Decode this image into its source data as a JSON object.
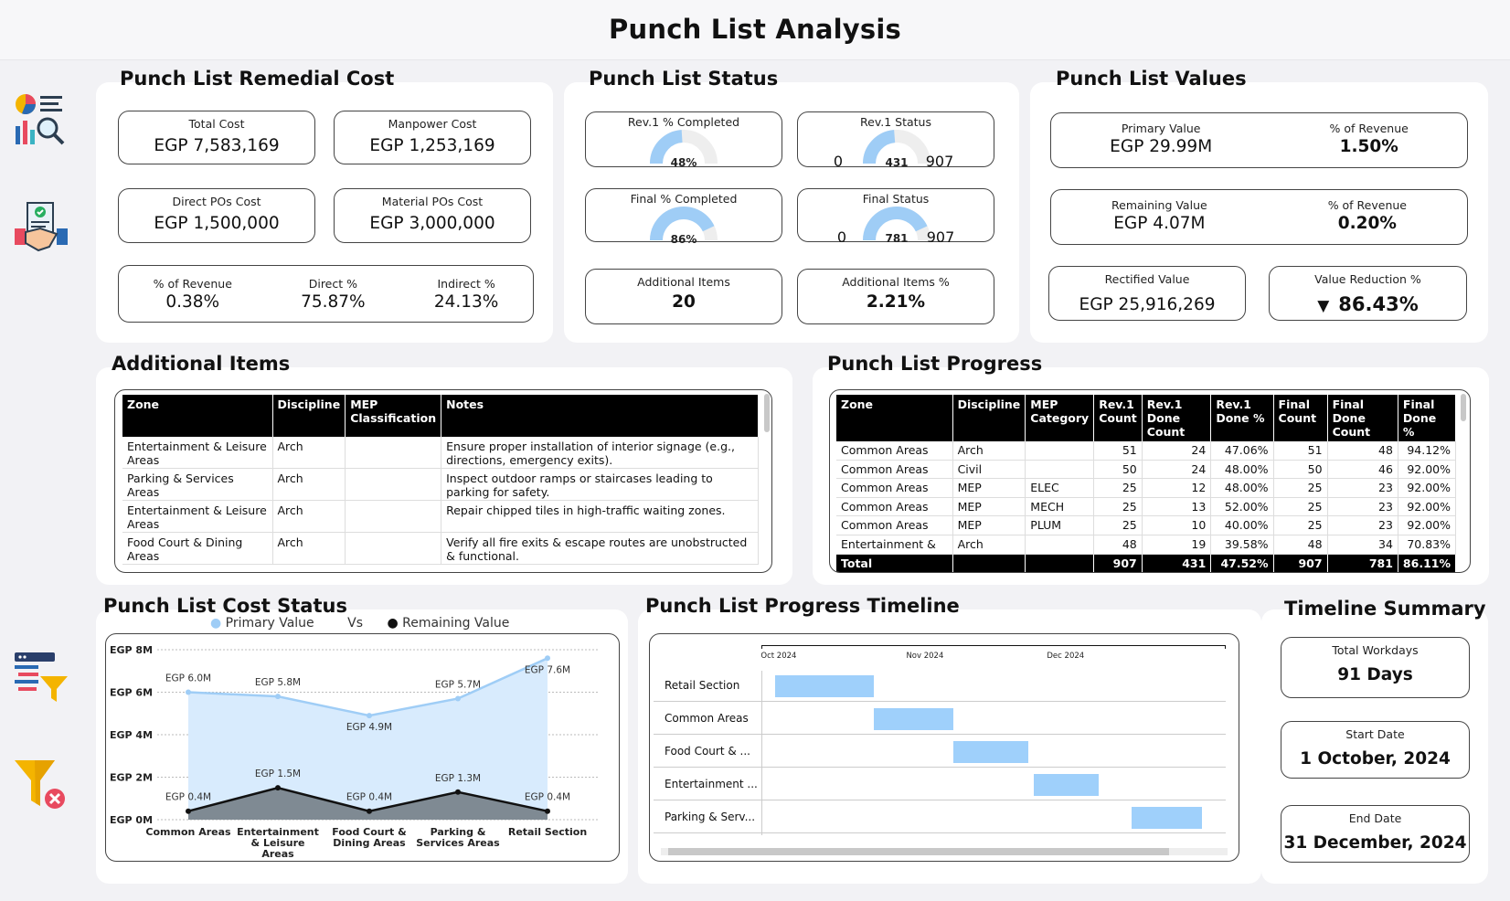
{
  "header": {
    "title": "Punch List Analysis"
  },
  "sidebar": {
    "icons": [
      "analytics-icon",
      "handshake-contract-icon",
      "filter-list-icon",
      "clear-filter-icon"
    ]
  },
  "remedial": {
    "title": "Punch List Remedial Cost",
    "total_cost": {
      "label": "Total Cost",
      "value": "EGP 7,583,169"
    },
    "manpower_cost": {
      "label": "Manpower Cost",
      "value": "EGP 1,253,169"
    },
    "direct_pos": {
      "label": "Direct POs Cost",
      "value": "EGP 1,500,000"
    },
    "material_pos": {
      "label": "Material POs Cost",
      "value": "EGP 3,000,000"
    },
    "pct_revenue": {
      "label": "% of Revenue",
      "value": "0.38%"
    },
    "direct_pct": {
      "label": "Direct %",
      "value": "75.87%"
    },
    "indirect_pct": {
      "label": "Indirect %",
      "value": "24.13%"
    }
  },
  "status": {
    "title": "Punch List Status",
    "rev1_completed": {
      "label": "Rev.1 % Completed",
      "value": "48%",
      "fraction": 0.48
    },
    "rev1_status": {
      "label": "Rev.1 Status",
      "min": "0",
      "value": "431",
      "max": "907",
      "fraction": 0.4752
    },
    "final_completed": {
      "label": "Final % Completed",
      "value": "86%",
      "fraction": 0.86
    },
    "final_status": {
      "label": "Final Status",
      "min": "0",
      "value": "781",
      "max": "907",
      "fraction": 0.8611
    },
    "additional_items": {
      "label": "Additional Items",
      "value": "20"
    },
    "additional_items_pct": {
      "label": "Additional Items %",
      "value": "2.21%"
    }
  },
  "values": {
    "title": "Punch List Values",
    "primary": {
      "label": "Primary Value",
      "value": "EGP 29.99M",
      "pct_label": "% of Revenue",
      "pct": "1.50%"
    },
    "remaining": {
      "label": "Remaining Value",
      "value": "EGP 4.07M",
      "pct_label": "% of Revenue",
      "pct": "0.20%"
    },
    "rectified": {
      "label": "Rectified Value",
      "value": "EGP 25,916,269"
    },
    "reduction": {
      "label": "Value Reduction %",
      "value": "86.43%",
      "arrow": "▼"
    }
  },
  "additional": {
    "title": "Additional Items",
    "columns": [
      "Zone",
      "Discipline",
      "MEP Classification",
      "Notes"
    ],
    "rows": [
      [
        "Entertainment & Leisure Areas",
        "Arch",
        "",
        "Ensure proper installation of interior signage (e.g., directions, emergency exits)."
      ],
      [
        "Parking & Services Areas",
        "Arch",
        "",
        "Inspect outdoor ramps or staircases leading to parking for safety."
      ],
      [
        "Entertainment & Leisure Areas",
        "Arch",
        "",
        "Repair chipped tiles in high-traffic waiting zones."
      ],
      [
        "Food Court & Dining Areas",
        "Arch",
        "",
        "Verify all fire exits & escape routes are unobstructed & functional."
      ]
    ]
  },
  "progress": {
    "title": "Punch List Progress",
    "columns": [
      "Zone",
      "Discipline",
      "MEP Category",
      "Rev.1 Count",
      "Rev.1 Done Count",
      "Rev.1 Done %",
      "Final Count",
      "Final Done Count",
      "Final Done %"
    ],
    "rows": [
      [
        "Common Areas",
        "Arch",
        "",
        "51",
        "24",
        "47.06%",
        "51",
        "48",
        "94.12%"
      ],
      [
        "Common Areas",
        "Civil",
        "",
        "50",
        "24",
        "48.00%",
        "50",
        "46",
        "92.00%"
      ],
      [
        "Common Areas",
        "MEP",
        "ELEC",
        "25",
        "12",
        "48.00%",
        "25",
        "23",
        "92.00%"
      ],
      [
        "Common Areas",
        "MEP",
        "MECH",
        "25",
        "13",
        "52.00%",
        "25",
        "23",
        "92.00%"
      ],
      [
        "Common Areas",
        "MEP",
        "PLUM",
        "25",
        "10",
        "40.00%",
        "25",
        "23",
        "92.00%"
      ],
      [
        "Entertainment &",
        "Arch",
        "",
        "48",
        "19",
        "39.58%",
        "48",
        "34",
        "70.83%"
      ]
    ],
    "total": [
      "Total",
      "",
      "",
      "907",
      "431",
      "47.52%",
      "907",
      "781",
      "86.11%"
    ]
  },
  "cost_status": {
    "title": "Punch List Cost Status",
    "legend": {
      "primary": "Primary Value",
      "vs": "Vs",
      "remaining": "Remaining Value"
    }
  },
  "chart_data": {
    "type": "area",
    "title": "Punch List Cost Status",
    "categories": [
      "Common Areas",
      "Entertainment & Leisure Areas",
      "Food Court & Dining Areas",
      "Parking & Services Areas",
      "Retail Section"
    ],
    "series": [
      {
        "name": "Primary Value",
        "values": [
          6.0,
          5.8,
          4.9,
          5.7,
          7.6
        ],
        "labels": [
          "EGP 6.0M",
          "EGP 5.8M",
          "EGP 4.9M",
          "EGP 5.7M",
          "EGP 7.6M"
        ],
        "color": "#9fcdf6"
      },
      {
        "name": "Remaining Value",
        "values": [
          0.4,
          1.5,
          0.4,
          1.3,
          0.4
        ],
        "labels": [
          "EGP 0.4M",
          "EGP 1.5M",
          "EGP 0.4M",
          "EGP 1.3M",
          "EGP 0.4M"
        ],
        "color": "#111111"
      }
    ],
    "yticks": [
      "EGP 0M",
      "EGP 2M",
      "EGP 4M",
      "EGP 6M",
      "EGP 8M"
    ],
    "ylim": [
      0,
      8
    ],
    "ylabel": "",
    "xlabel": ""
  },
  "timeline": {
    "title": "Punch List Progress Timeline",
    "months": [
      "Oct 2024",
      "Nov 2024",
      "Dec 2024"
    ],
    "axis_start": "2024-09-28",
    "axis_end": "2025-01-05",
    "rows": [
      {
        "label": "Retail Section",
        "start": "2024-10-01",
        "end": "2024-10-22"
      },
      {
        "label": "Common Areas",
        "start": "2024-10-22",
        "end": "2024-11-08"
      },
      {
        "label": "Food Court & ...",
        "start": "2024-11-08",
        "end": "2024-11-24"
      },
      {
        "label": "Entertainment ...",
        "start": "2024-11-25",
        "end": "2024-12-09"
      },
      {
        "label": "Parking & Serv...",
        "start": "2024-12-16",
        "end": "2024-12-31"
      }
    ]
  },
  "summary": {
    "title": "Timeline Summary",
    "workdays": {
      "label": "Total Workdays",
      "value": "91 Days"
    },
    "start": {
      "label": "Start Date",
      "value": "1 October, 2024"
    },
    "end": {
      "label": "End Date",
      "value": "31 December, 2024"
    }
  },
  "colors": {
    "gauge_fill": "#9fcdf6",
    "gauge_bg": "#eeeeee",
    "red": "#ee1c25",
    "green": "#22c43a"
  }
}
